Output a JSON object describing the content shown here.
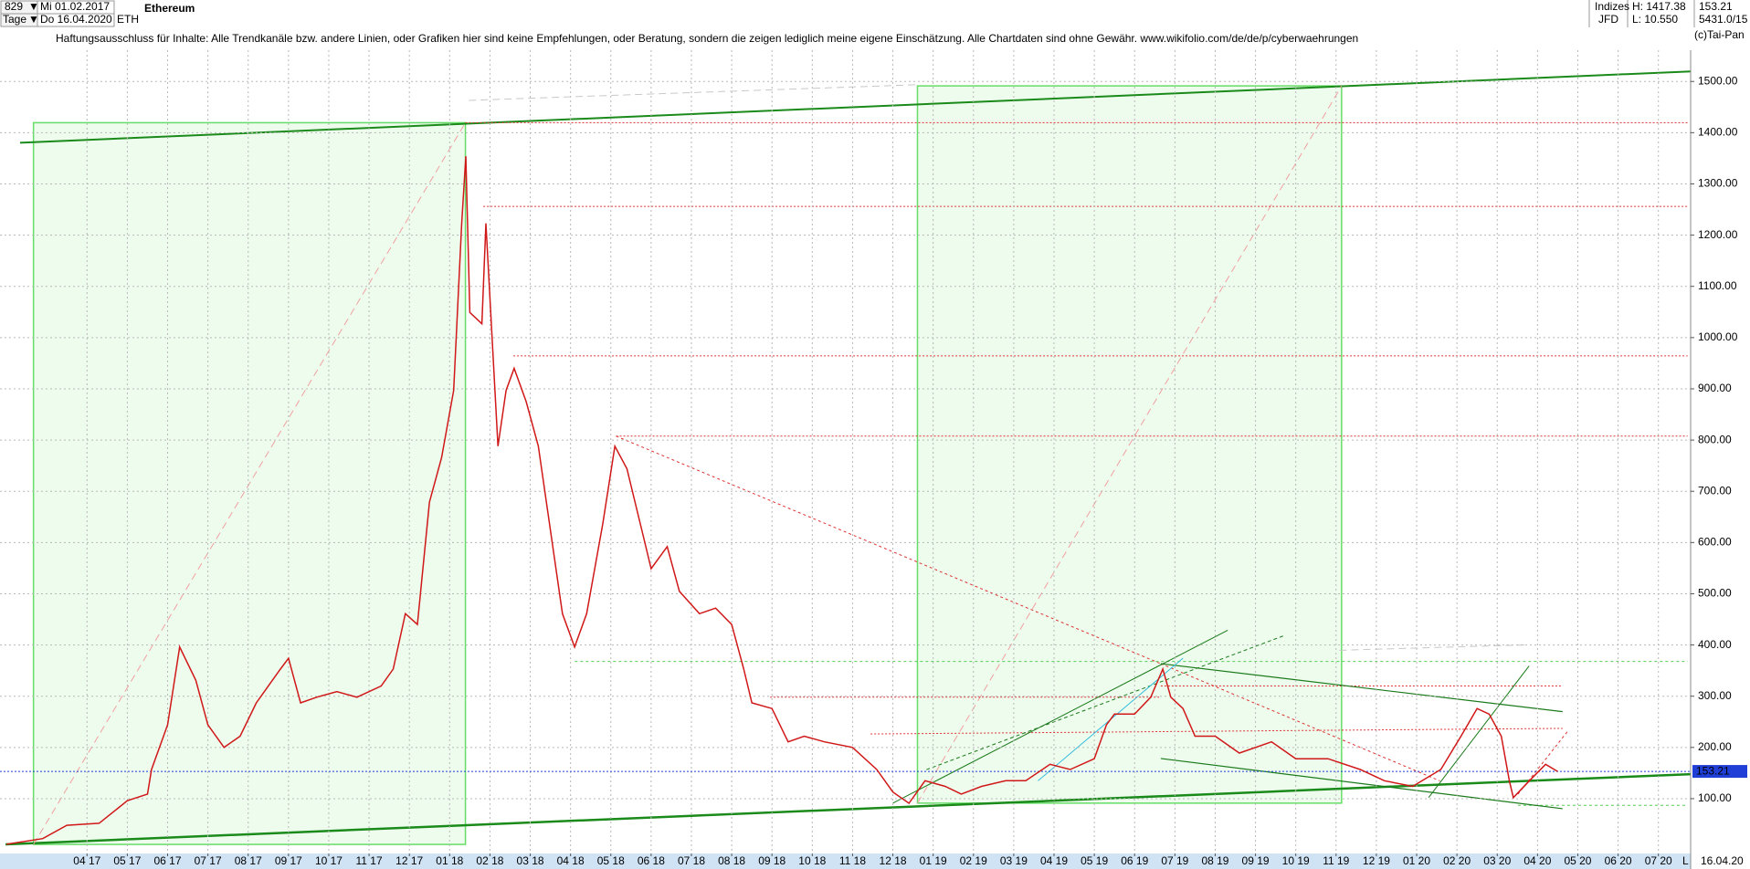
{
  "header": {
    "bar_count": "829",
    "start_date": "Mi 01.02.2017",
    "period": "Tage",
    "end_date": "Do 16.04.2020",
    "symbol": "ETH",
    "name": "Ethereum",
    "category": "Indizes",
    "exchange": "JFD",
    "high": "H: 1417.38",
    "low": "L: 10.550",
    "volume": "5431.0/15",
    "copyright": "(c)Tai-Pan",
    "disclaimer": "Haftungsausschluss für Inhalte: Alle Trendkanäle bzw. andere Linien, oder Grafiken hier sind keine Empfehlungen, oder Beratung, sondern die zeigen lediglich meine eigene Einschätzung. Alle Chartdaten sind ohne Gewähr.  www.wikifolio.com/de/de/p/cyberwaehrungen"
  },
  "footer": {
    "date": "16.04.20",
    "scale": "L"
  },
  "chart_data": {
    "type": "line",
    "color": "#d01818",
    "grid": true,
    "last_price": 153.21,
    "last_price_color": "#1f3fd6",
    "x": [
      1.0,
      1.9,
      2.5,
      3.3,
      4.0,
      4.5,
      4.6,
      5.0,
      5.3,
      5.7,
      6.0,
      6.4,
      6.8,
      7.2,
      7.8,
      8.0,
      8.3,
      8.7,
      9.2,
      9.7,
      10.3,
      10.6,
      10.9,
      11.2,
      11.5,
      11.8,
      12.1,
      12.3,
      12.4,
      12.5,
      12.8,
      12.9,
      13.2,
      13.4,
      13.6,
      13.9,
      14.2,
      14.6,
      14.8,
      15.1,
      15.4,
      15.8,
      16.1,
      16.4,
      16.8,
      17.0,
      17.4,
      17.7,
      18.2,
      18.6,
      19.0,
      19.3,
      19.5,
      20.0,
      20.4,
      20.8,
      21.3,
      22.0,
      22.6,
      23.0,
      23.4,
      23.8,
      24.3,
      24.7,
      25.2,
      25.8,
      26.3,
      26.9,
      27.4,
      28.0,
      28.3,
      28.5,
      29.0,
      29.4,
      29.7,
      29.9,
      30.2,
      30.5,
      31.0,
      31.6,
      32.4,
      33.0,
      33.8,
      34.6,
      35.2,
      35.9,
      36.6,
      37.1,
      37.5,
      37.8,
      38.1,
      38.3,
      38.4,
      38.8,
      39.2,
      39.5
    ],
    "values": [
      11,
      22,
      48,
      52,
      96,
      109,
      157,
      244,
      396,
      331,
      244,
      200,
      222,
      287,
      353,
      374,
      287,
      298,
      309,
      298,
      320,
      353,
      461,
      440,
      679,
      766,
      897,
      1223,
      1354,
      1049,
      1027,
      1223,
      788,
      897,
      940,
      875,
      788,
      570,
      461,
      396,
      461,
      636,
      788,
      744,
      614,
      549,
      592,
      505,
      461,
      472,
      440,
      353,
      287,
      276,
      211,
      222,
      211,
      200,
      157,
      113,
      91,
      135,
      124,
      109,
      124,
      135,
      135,
      167,
      157,
      178,
      244,
      265,
      265,
      298,
      353,
      298,
      276,
      222,
      222,
      189,
      211,
      178,
      178,
      157,
      135,
      124,
      157,
      222,
      276,
      265,
      222,
      135,
      102,
      135,
      167,
      153.21
    ],
    "xlim": [
      0.84,
      42.8
    ],
    "ylim": [
      -7,
      1561
    ],
    "yticks": [
      {
        "value": 100,
        "label": "100.00"
      },
      {
        "value": 200,
        "label": "200.00"
      },
      {
        "value": 300,
        "label": "300.00"
      },
      {
        "value": 400,
        "label": "400.00"
      },
      {
        "value": 500,
        "label": "500.00"
      },
      {
        "value": 600,
        "label": "600.00"
      },
      {
        "value": 700,
        "label": "700.00"
      },
      {
        "value": 800,
        "label": "800.00"
      },
      {
        "value": 900,
        "label": "900.00"
      },
      {
        "value": 1000,
        "label": "1000.00"
      },
      {
        "value": 1100,
        "label": "1100.00"
      },
      {
        "value": 1200,
        "label": "1200.00"
      },
      {
        "value": 1300,
        "label": "1300.00"
      },
      {
        "value": 1400,
        "label": "1400.00"
      },
      {
        "value": 1500,
        "label": "1500.00"
      }
    ],
    "xticks": [
      {
        "value": 3,
        "label": "04 17"
      },
      {
        "value": 4,
        "label": "05 17"
      },
      {
        "value": 5,
        "label": "06 17"
      },
      {
        "value": 6,
        "label": "07 17"
      },
      {
        "value": 7,
        "label": "08 17"
      },
      {
        "value": 8,
        "label": "09 17"
      },
      {
        "value": 9,
        "label": "10 17"
      },
      {
        "value": 10,
        "label": "11 17"
      },
      {
        "value": 11,
        "label": "12 17"
      },
      {
        "value": 12,
        "label": "01 18"
      },
      {
        "value": 13,
        "label": "02 18"
      },
      {
        "value": 14,
        "label": "03 18"
      },
      {
        "value": 15,
        "label": "04 18"
      },
      {
        "value": 16,
        "label": "05 18"
      },
      {
        "value": 17,
        "label": "06 18"
      },
      {
        "value": 18,
        "label": "07 18"
      },
      {
        "value": 19,
        "label": "08 18"
      },
      {
        "value": 20,
        "label": "09 18"
      },
      {
        "value": 21,
        "label": "10 18"
      },
      {
        "value": 22,
        "label": "11 18"
      },
      {
        "value": 23,
        "label": "12 18"
      },
      {
        "value": 24,
        "label": "01 19"
      },
      {
        "value": 25,
        "label": "02 19"
      },
      {
        "value": 26,
        "label": "03 19"
      },
      {
        "value": 27,
        "label": "04 19"
      },
      {
        "value": 28,
        "label": "05 19"
      },
      {
        "value": 29,
        "label": "06 19"
      },
      {
        "value": 30,
        "label": "07 19"
      },
      {
        "value": 31,
        "label": "08 19"
      },
      {
        "value": 32,
        "label": "09 19"
      },
      {
        "value": 33,
        "label": "10 19"
      },
      {
        "value": 34,
        "label": "11 19"
      },
      {
        "value": 35,
        "label": "12 19"
      },
      {
        "value": 36,
        "label": "01 20"
      },
      {
        "value": 37,
        "label": "02 20"
      },
      {
        "value": 38,
        "label": "03 20"
      },
      {
        "value": 39,
        "label": "04 20"
      },
      {
        "value": 40,
        "label": "05 20"
      },
      {
        "value": 41,
        "label": "06 20"
      },
      {
        "value": 42,
        "label": "07 20"
      }
    ]
  }
}
